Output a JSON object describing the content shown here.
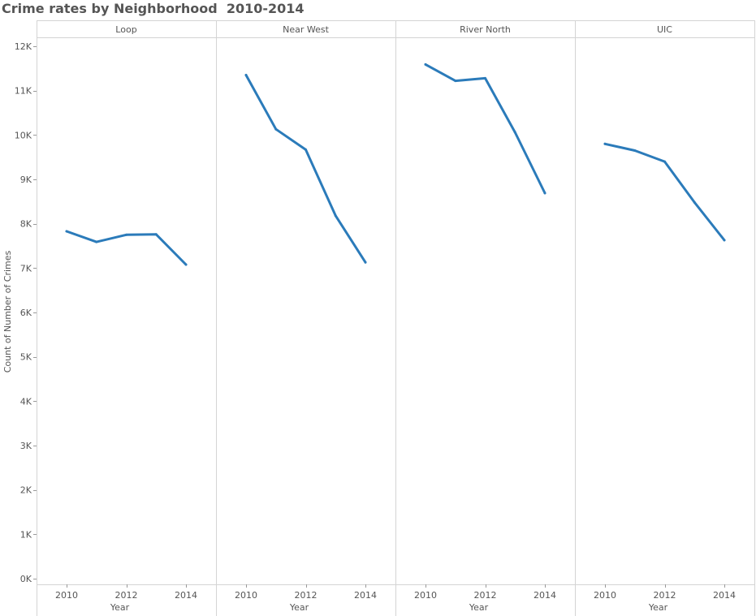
{
  "chart_data": {
    "type": "line",
    "title": "Crime rates by Neighborhood  2010-2014",
    "xlabel": "Year",
    "ylabel": "Count of Number of Crimes",
    "ylim": [
      0,
      12000
    ],
    "yticks": [
      0,
      1000,
      2000,
      3000,
      4000,
      5000,
      6000,
      7000,
      8000,
      9000,
      10000,
      11000,
      12000
    ],
    "ytick_labels": [
      "0K",
      "1K",
      "2K",
      "3K",
      "4K",
      "5K",
      "6K",
      "7K",
      "8K",
      "9K",
      "10K",
      "11K",
      "12K"
    ],
    "x": [
      2010,
      2011,
      2012,
      2013,
      2014
    ],
    "xticks": [
      2010,
      2012,
      2014
    ],
    "xtick_labels": [
      "2010",
      "2012",
      "2014"
    ],
    "grid": false,
    "line_color": "#2b7bba",
    "panels": [
      {
        "name": "Loop",
        "values": [
          7830,
          7590,
          7750,
          7760,
          7080
        ]
      },
      {
        "name": "Near West",
        "values": [
          11350,
          10130,
          9670,
          8180,
          7130
        ]
      },
      {
        "name": "River North",
        "values": [
          11590,
          11220,
          11280,
          10060,
          8690
        ]
      },
      {
        "name": "UIC",
        "values": [
          9800,
          9650,
          9400,
          8480,
          7630
        ]
      }
    ]
  }
}
